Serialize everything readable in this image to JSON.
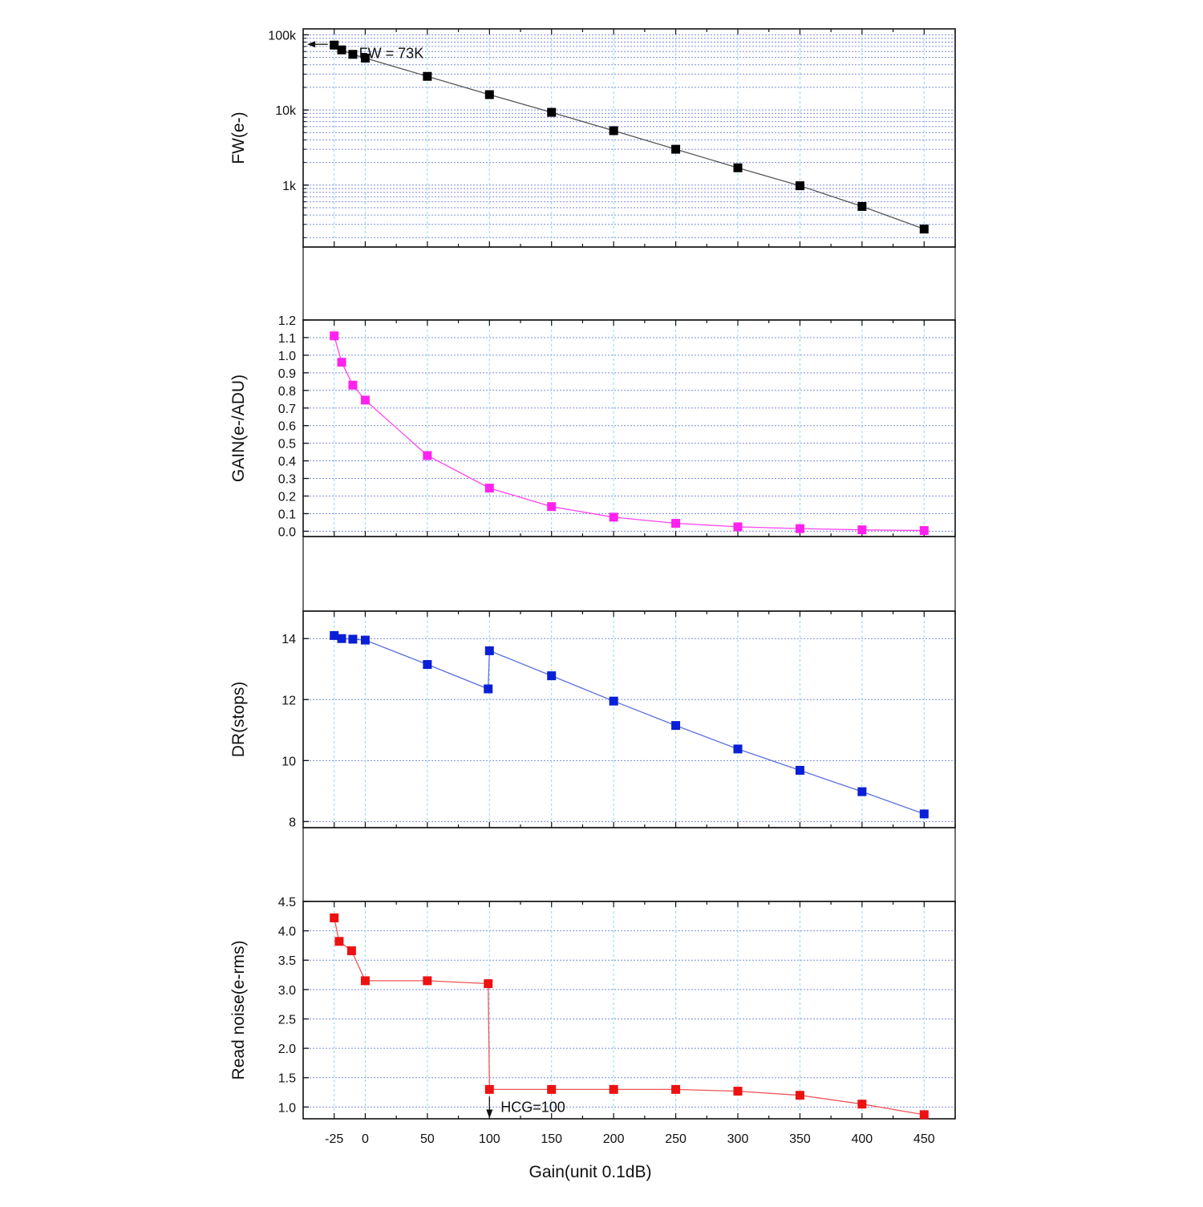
{
  "x_axis": {
    "label": "Gain(unit 0.1dB)",
    "range": [
      -50,
      475
    ],
    "ticks": [
      -25,
      0,
      50,
      100,
      150,
      200,
      250,
      300,
      350,
      400,
      450
    ],
    "tick_labels": [
      "-25",
      "0",
      "50",
      "100",
      "150",
      "200",
      "250",
      "300",
      "350",
      "400",
      "450"
    ],
    "grid_values": [
      -25,
      0,
      50,
      100,
      150,
      200,
      250,
      300,
      350,
      400,
      450
    ]
  },
  "chart_data": [
    {
      "id": "fw",
      "type": "line",
      "scale": "log",
      "ylabel": "FW(e-)",
      "ylim": [
        150,
        120000
      ],
      "yticks": [
        1000,
        10000,
        100000
      ],
      "ytick_labels": [
        "1k",
        "10k",
        "100k"
      ],
      "color": "#000000",
      "line_color": "#555555",
      "x": [
        -25,
        -19,
        -10,
        0,
        50,
        100,
        150,
        200,
        250,
        300,
        350,
        400,
        450
      ],
      "y": [
        73000,
        63000,
        55000,
        49000,
        28000,
        16000,
        9300,
        5300,
        3000,
        1700,
        980,
        520,
        260
      ],
      "annotations": [
        {
          "text": "FW = 73K",
          "x": -5,
          "y": 57000,
          "arrow_from_x": -25,
          "arrow_to_x": -48
        }
      ]
    },
    {
      "id": "gain",
      "type": "line",
      "scale": "linear",
      "ylabel": "GAIN(e-/ADU)",
      "ylim": [
        -0.03,
        1.2
      ],
      "yticks": [
        0.0,
        0.1,
        0.2,
        0.3,
        0.4,
        0.5,
        0.6,
        0.7,
        0.8,
        0.9,
        1.0,
        1.1,
        1.2
      ],
      "ytick_labels": [
        "0.0",
        "0.1",
        "0.2",
        "0.3",
        "0.4",
        "0.5",
        "0.6",
        "0.7",
        "0.8",
        "0.9",
        "1.0",
        "1.1",
        "1.2"
      ],
      "grid_values": [
        0.0,
        0.1,
        0.2,
        0.3,
        0.4,
        0.5,
        0.6,
        0.7,
        0.8,
        0.9,
        1.0,
        1.1
      ],
      "color": "#ff22ee",
      "line_color": "#ff44ee",
      "x": [
        -25,
        -19,
        -10,
        0,
        50,
        100,
        150,
        200,
        250,
        300,
        350,
        400,
        450
      ],
      "y": [
        1.11,
        0.96,
        0.83,
        0.745,
        0.43,
        0.245,
        0.14,
        0.08,
        0.045,
        0.025,
        0.015,
        0.008,
        0.004
      ],
      "annotations": []
    },
    {
      "id": "dr",
      "type": "line",
      "scale": "linear",
      "ylabel": "DR(stops)",
      "ylim": [
        7.8,
        14.9
      ],
      "yticks": [
        8,
        10,
        12,
        14
      ],
      "ytick_labels": [
        "8",
        "10",
        "12",
        "14"
      ],
      "grid_values": [
        8,
        10,
        12,
        14
      ],
      "color": "#0a1fd6",
      "line_color": "#5a6fe0",
      "x": [
        -25,
        -19,
        -10,
        0,
        50,
        99,
        100,
        150,
        200,
        250,
        300,
        350,
        400,
        450
      ],
      "y": [
        14.1,
        14.0,
        13.98,
        13.95,
        13.15,
        12.35,
        13.6,
        12.78,
        11.95,
        11.15,
        10.38,
        9.68,
        8.98,
        8.25
      ],
      "annotations": []
    },
    {
      "id": "read_noise",
      "type": "line",
      "scale": "linear",
      "ylabel": "Read noise(e-rms)",
      "ylim": [
        0.8,
        4.5
      ],
      "yticks": [
        1.0,
        1.5,
        2.0,
        2.5,
        3.0,
        3.5,
        4.0,
        4.5
      ],
      "ytick_labels": [
        "1.0",
        "1.5",
        "2.0",
        "2.5",
        "3.0",
        "3.5",
        "4.0",
        "4.5"
      ],
      "grid_values": [
        1.0,
        1.5,
        2.0,
        2.5,
        3.0,
        3.5,
        4.0,
        4.5
      ],
      "color": "#ee1111",
      "line_color": "#ee5555",
      "x": [
        -25,
        -21,
        -11,
        0,
        50,
        99,
        100,
        150,
        200,
        250,
        300,
        350,
        400,
        450
      ],
      "y": [
        4.22,
        3.82,
        3.66,
        3.15,
        3.15,
        3.1,
        1.3,
        1.3,
        1.3,
        1.3,
        1.27,
        1.2,
        1.05,
        0.87
      ],
      "annotations": [
        {
          "text": "HCG=100",
          "x": 109,
          "y": 1.0,
          "arrow_x": 100,
          "arrow_from_y": 1.18,
          "arrow_to_y": 0.82
        }
      ]
    }
  ]
}
